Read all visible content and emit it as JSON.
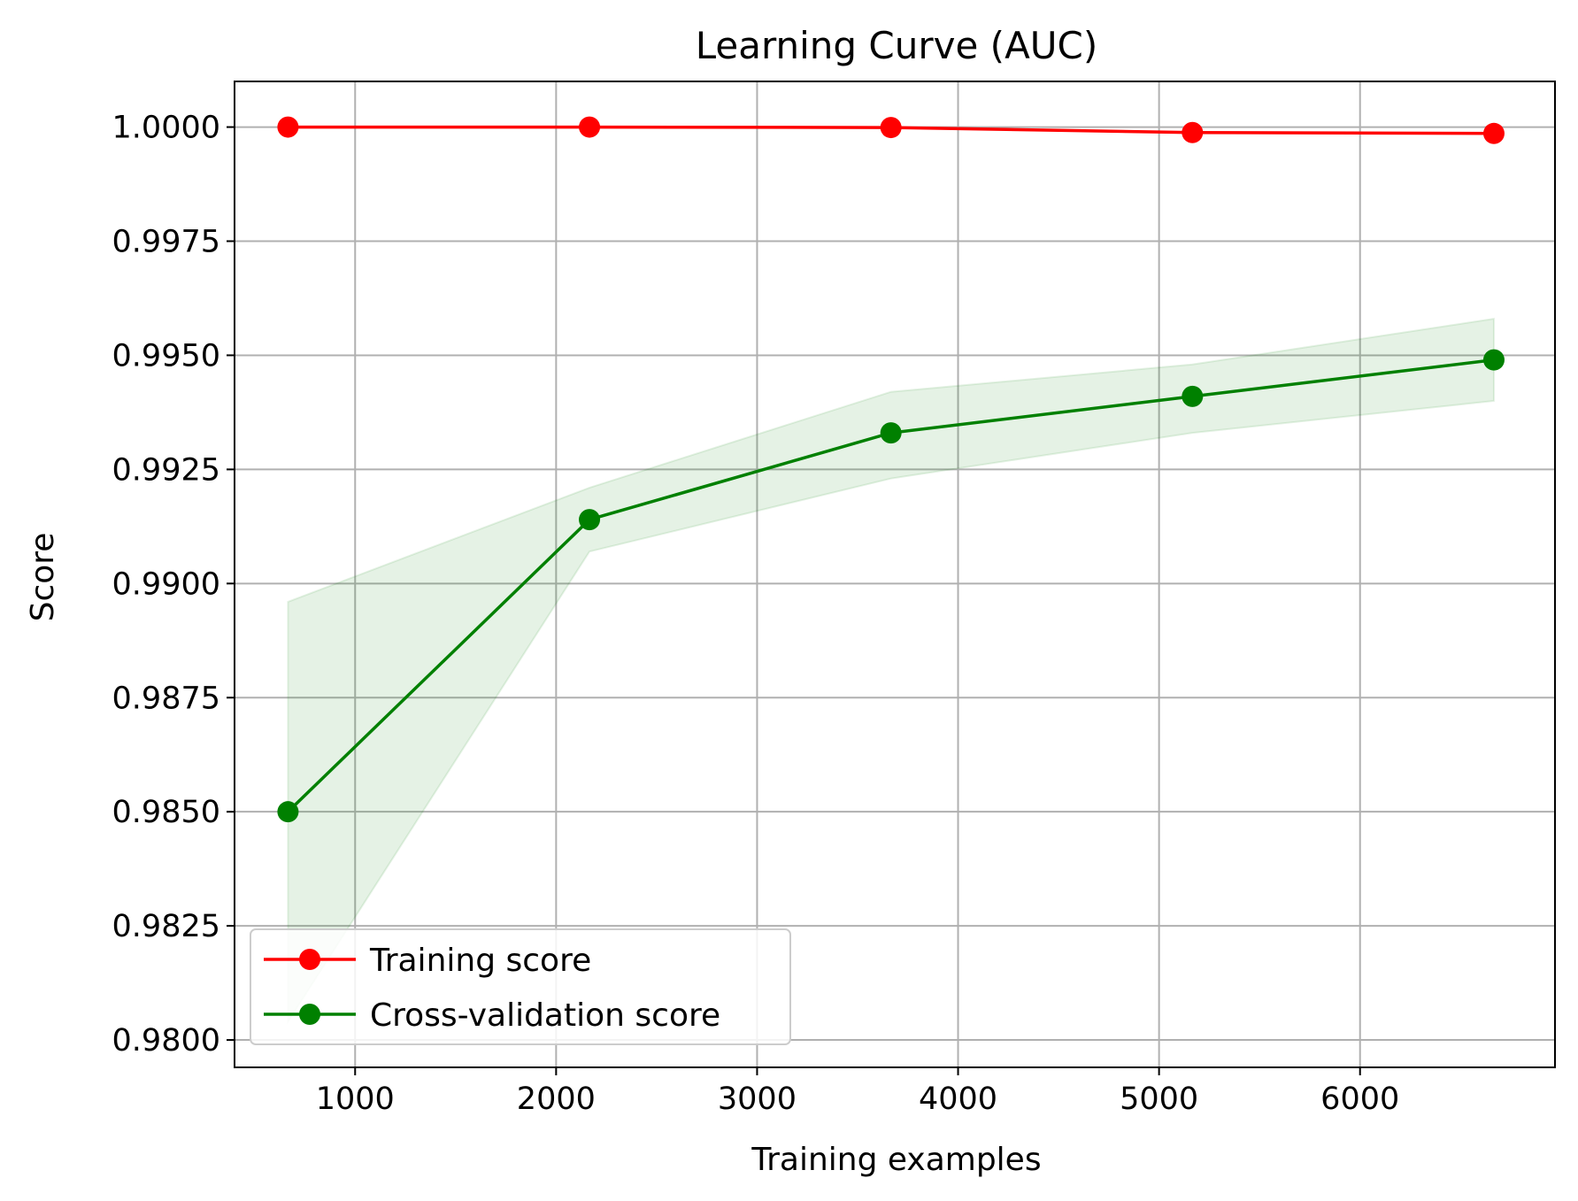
{
  "chart_data": {
    "type": "line",
    "title": "Learning Curve (AUC)",
    "xlabel": "Training examples",
    "ylabel": "Score",
    "xlim": [
      400,
      6970
    ],
    "ylim": [
      0.9794,
      1.001
    ],
    "x_ticks": [
      1000,
      2000,
      3000,
      4000,
      5000,
      6000
    ],
    "x_tick_labels": [
      "1000",
      "2000",
      "3000",
      "4000",
      "5000",
      "6000"
    ],
    "y_ticks": [
      0.98,
      0.9825,
      0.985,
      0.9875,
      0.99,
      0.9925,
      0.995,
      0.9975,
      1.0
    ],
    "y_tick_labels": [
      "0.9800",
      "0.9825",
      "0.9850",
      "0.9875",
      "0.9900",
      "0.9925",
      "0.9950",
      "0.9975",
      "1.0000"
    ],
    "grid": true,
    "legend_position": "lower-left",
    "x": [
      666,
      2166,
      3666,
      5166,
      6666
    ],
    "series": [
      {
        "name": "Training score",
        "color": "#ff0000",
        "values": [
          1.0,
          1.0,
          0.99999,
          0.99988,
          0.99986
        ],
        "band_lower": [
          1.0,
          1.0,
          0.99999,
          0.99988,
          0.99986
        ],
        "band_upper": [
          1.0,
          1.0,
          0.99999,
          0.99988,
          0.99986
        ]
      },
      {
        "name": "Cross-validation score",
        "color": "#008000",
        "band_color": "#008000",
        "values": [
          0.985,
          0.9914,
          0.9933,
          0.9941,
          0.9949
        ],
        "band_lower": [
          0.9804,
          0.9907,
          0.9923,
          0.9933,
          0.994
        ],
        "band_upper": [
          0.9896,
          0.9921,
          0.9942,
          0.9948,
          0.9958
        ]
      }
    ]
  }
}
